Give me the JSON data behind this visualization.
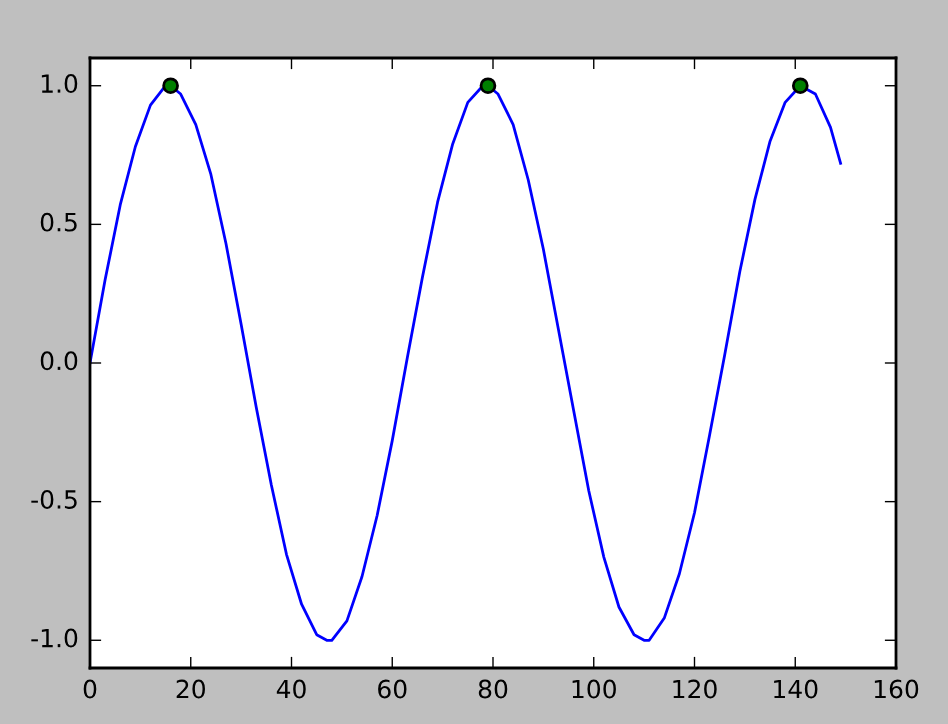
{
  "chart_data": {
    "type": "line",
    "xlim": [
      0,
      160
    ],
    "ylim": [
      -1.1,
      1.1
    ],
    "xticks": [
      0,
      20,
      40,
      60,
      80,
      100,
      120,
      140,
      160
    ],
    "yticks": [
      {
        "value": -1.0,
        "label": "-1.0"
      },
      {
        "value": -0.5,
        "label": "-0.5"
      },
      {
        "value": 0.0,
        "label": "0.0"
      },
      {
        "value": 0.5,
        "label": "0.5"
      },
      {
        "value": 1.0,
        "label": "1.0"
      }
    ],
    "grid": false,
    "legend": false,
    "series": [
      {
        "color": "#0000ff",
        "marker": "none",
        "x": [
          0,
          3,
          6,
          9,
          12,
          15,
          16,
          18,
          21,
          24,
          27,
          30,
          33,
          36,
          39,
          42,
          45,
          47,
          48,
          51,
          54,
          57,
          60,
          63,
          66,
          69,
          72,
          75,
          78,
          79,
          81,
          84,
          87,
          90,
          93,
          96,
          99,
          102,
          105,
          108,
          110,
          111,
          114,
          117,
          120,
          123,
          126,
          129,
          132,
          135,
          138,
          141,
          144,
          147,
          149
        ],
        "values": [
          0,
          0.3,
          0.57,
          0.78,
          0.93,
          1.0,
          1.0,
          0.97,
          0.86,
          0.68,
          0.43,
          0.14,
          -0.16,
          -0.44,
          -0.69,
          -0.87,
          -0.98,
          -1.0,
          -1.0,
          -0.93,
          -0.77,
          -0.55,
          -0.28,
          0.02,
          0.31,
          0.58,
          0.79,
          0.94,
          1.0,
          1.0,
          0.97,
          0.86,
          0.66,
          0.41,
          0.12,
          -0.17,
          -0.46,
          -0.7,
          -0.88,
          -0.98,
          -1.0,
          -1.0,
          -0.92,
          -0.76,
          -0.54,
          -0.26,
          0.03,
          0.33,
          0.59,
          0.8,
          0.94,
          1.0,
          0.97,
          0.85,
          0.72
        ]
      },
      {
        "type": "scatter",
        "color": "#008000",
        "marker": "circle",
        "x": [
          16,
          79,
          141
        ],
        "values": [
          1.0,
          1.0,
          1.0
        ]
      }
    ]
  }
}
